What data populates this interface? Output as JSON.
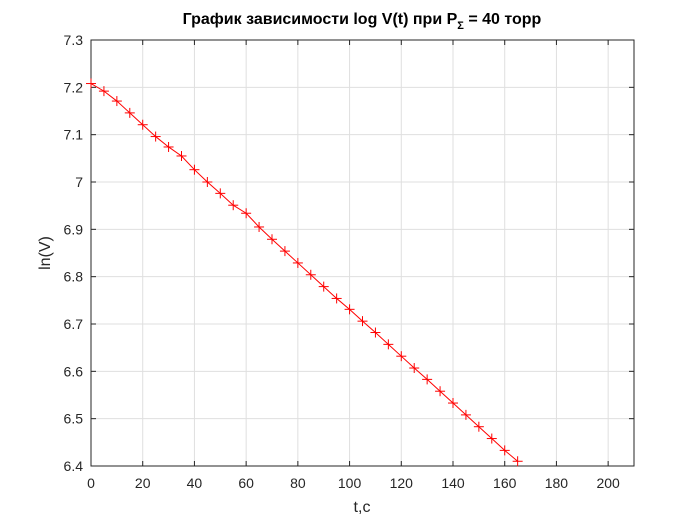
{
  "chart_data": {
    "type": "line",
    "title": "График зависимости log V(t) при P",
    "title_subscript": "Σ",
    "title_suffix": " = 40 торр",
    "xlabel": "t,c",
    "ylabel": "ln(V)",
    "xlim": [
      0,
      210
    ],
    "ylim": [
      6.4,
      7.3
    ],
    "xticks": [
      0,
      20,
      40,
      60,
      80,
      100,
      120,
      140,
      160,
      180,
      200
    ],
    "yticks": [
      6.4,
      6.5,
      6.6,
      6.7,
      6.8,
      6.9,
      7.0,
      7.1,
      7.2,
      7.3
    ],
    "xtick_labels": [
      "0",
      "20",
      "40",
      "60",
      "80",
      "100",
      "120",
      "140",
      "160",
      "180",
      "200"
    ],
    "ytick_labels": [
      "6.4",
      "6.5",
      "6.6",
      "6.7",
      "6.8",
      "6.9",
      "7",
      "7.1",
      "7.2",
      "7.3"
    ],
    "grid": true,
    "line_color": "#ff0000",
    "marker": "plus",
    "series": [
      {
        "x": [
          0,
          5,
          10,
          15,
          20,
          25,
          30,
          35,
          40,
          45,
          50,
          55,
          60,
          65,
          70,
          75,
          80,
          85,
          90,
          95,
          100,
          105,
          110,
          115,
          120,
          125,
          130,
          135,
          140,
          145,
          150,
          155,
          160,
          165
        ],
        "y": [
          7.208,
          7.192,
          7.171,
          7.146,
          7.121,
          7.096,
          7.074,
          7.055,
          7.026,
          7.0,
          6.976,
          6.951,
          6.934,
          6.905,
          6.879,
          6.854,
          6.829,
          6.804,
          6.779,
          6.754,
          6.731,
          6.706,
          6.682,
          6.657,
          6.632,
          6.607,
          6.583,
          6.558,
          6.533,
          6.508,
          6.483,
          6.458,
          6.433,
          6.41
        ]
      }
    ]
  }
}
